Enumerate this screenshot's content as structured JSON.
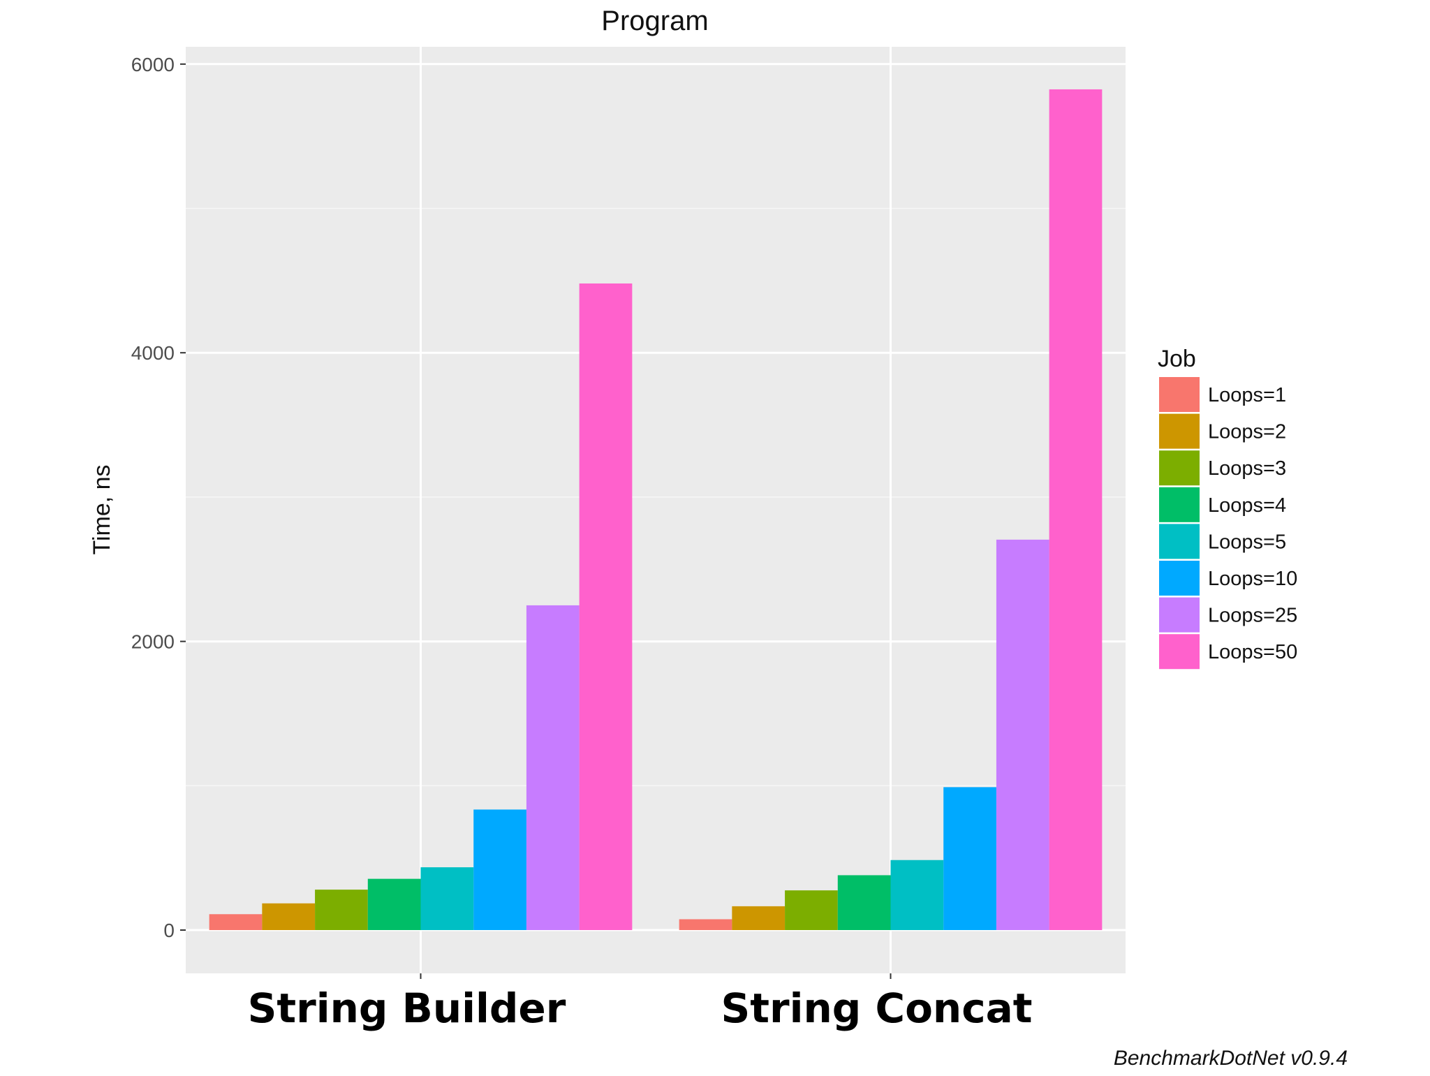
{
  "chart_data": {
    "type": "bar",
    "title": "Program",
    "xlabel": "",
    "ylabel": "Time, ns",
    "ylim": [
      -300,
      6120
    ],
    "y_ticks": [
      0,
      2000,
      4000,
      6000
    ],
    "y_tick_labels": [
      "0",
      "2000",
      "4000",
      "6000"
    ],
    "y_minor_gridlines": [
      1000,
      3000,
      5000
    ],
    "grid": true,
    "categories": [
      "String Builder",
      "String Concat"
    ],
    "legend": {
      "title": "Job",
      "placement": "right"
    },
    "series": [
      {
        "name": "Loops=1",
        "color": "#F8766D",
        "values": [
          110,
          75
        ]
      },
      {
        "name": "Loops=2",
        "color": "#CD9600",
        "values": [
          185,
          165
        ]
      },
      {
        "name": "Loops=3",
        "color": "#7CAE00",
        "values": [
          280,
          275
        ]
      },
      {
        "name": "Loops=4",
        "color": "#00BE67",
        "values": [
          355,
          380
        ]
      },
      {
        "name": "Loops=5",
        "color": "#00BFC4",
        "values": [
          435,
          485
        ]
      },
      {
        "name": "Loops=10",
        "color": "#00A9FF",
        "values": [
          835,
          990
        ]
      },
      {
        "name": "Loops=25",
        "color": "#C77CFF",
        "values": [
          2250,
          2705
        ]
      },
      {
        "name": "Loops=50",
        "color": "#FF61CC",
        "values": [
          4480,
          5825
        ]
      }
    ],
    "caption": "BenchmarkDotNet v0.9.4"
  }
}
